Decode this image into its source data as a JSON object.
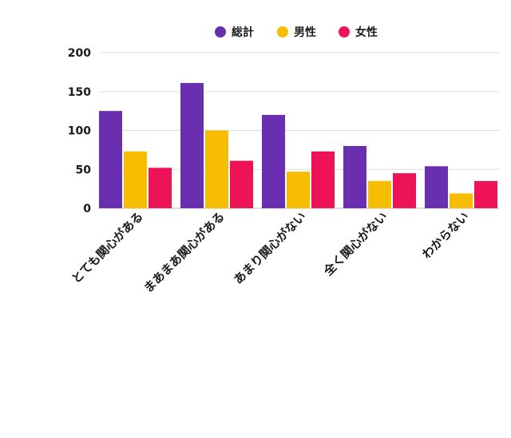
{
  "chart_data": {
    "type": "bar",
    "categories": [
      "とても関心がある",
      "まあまあ関心がある",
      "あまり関心がない",
      "全く関心がない",
      "わからない"
    ],
    "series": [
      {
        "name": "総計",
        "color": "#6a2fb0",
        "values": [
          125,
          161,
          120,
          80,
          54
        ]
      },
      {
        "name": "男性",
        "color": "#f7bd00",
        "values": [
          73,
          100,
          47,
          35,
          19
        ]
      },
      {
        "name": "女性",
        "color": "#ee1357",
        "values": [
          52,
          61,
          73,
          45,
          35
        ]
      }
    ],
    "ylim": [
      0,
      200
    ],
    "yticks": [
      0,
      50,
      100,
      150,
      200
    ],
    "grid": true,
    "legend_position": "top-center",
    "title": "",
    "xlabel": "",
    "ylabel": ""
  }
}
